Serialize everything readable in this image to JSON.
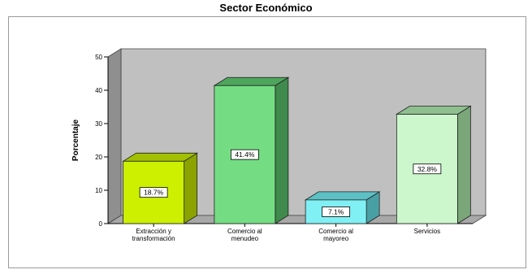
{
  "chart_data": {
    "type": "bar",
    "title": "Sector Económico",
    "ylabel": "Porcentaje",
    "xlabel": "",
    "ylim": [
      0,
      50
    ],
    "yticks": [
      0,
      10,
      20,
      30,
      40,
      50
    ],
    "grid": false,
    "legend": "none",
    "three_d": true,
    "wall_color": "#c0c0c0",
    "floor_color": "#a8a8a8",
    "categories": [
      [
        "Extracción y",
        "transformación"
      ],
      [
        "Comercio al",
        "menudeo"
      ],
      [
        "Comercio al",
        "mayoreo"
      ],
      [
        "Servicios"
      ]
    ],
    "values": [
      18.7,
      41.4,
      7.1,
      32.8
    ],
    "value_labels": [
      "18.7%",
      "41.4%",
      "7.1%",
      "32.8%"
    ],
    "colors": [
      {
        "front": "#ccf000",
        "top": "#a2c000",
        "side": "#8aa300"
      },
      {
        "front": "#74dd84",
        "top": "#4ea55c",
        "side": "#3f8a4c"
      },
      {
        "front": "#80f0f4",
        "top": "#5cc0c4",
        "side": "#49a0a4"
      },
      {
        "front": "#ccf7cc",
        "top": "#8fbf8f",
        "side": "#7aa67a"
      }
    ]
  }
}
